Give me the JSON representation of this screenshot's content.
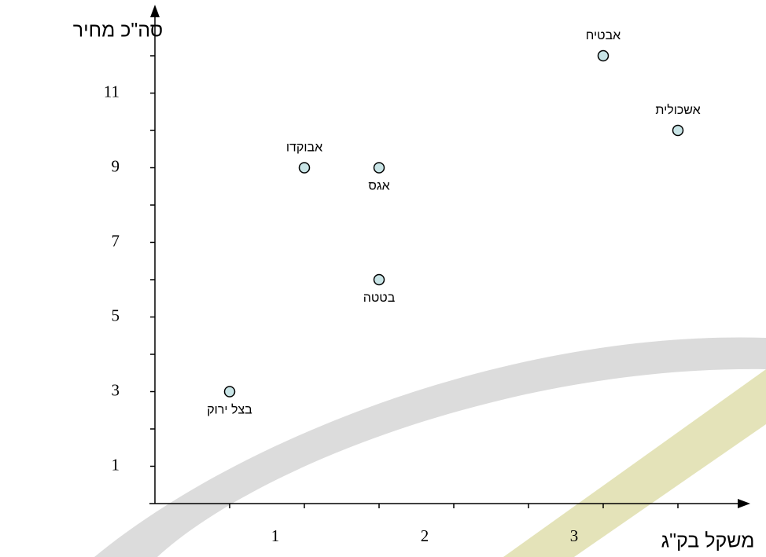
{
  "chart_data": {
    "type": "scatter",
    "x_label": "משקל בק\"ג",
    "y_label": "סה\"כ מחיר",
    "labels": [
      "אבטיח",
      "אשכולית",
      "אבוקדו",
      "אגס",
      "בטטה",
      "בצל ירוק"
    ],
    "x": [
      3,
      3.5,
      1,
      1.5,
      1.5,
      0.5
    ],
    "values": [
      12,
      10,
      9,
      9,
      6,
      3
    ],
    "color": "#c8e4e6",
    "xlim": [
      0,
      3.95
    ],
    "ylim": [
      0,
      13.35
    ],
    "xticks": [
      1,
      2,
      3
    ],
    "yticks": [
      1,
      3,
      5,
      7,
      9,
      11
    ],
    "x_tick_marks": [
      0.5,
      1,
      1.5,
      2,
      2.5,
      3,
      3.5
    ],
    "y_tick_marks": [
      1,
      2,
      3,
      4,
      5,
      6,
      7,
      8,
      9,
      10,
      11,
      12
    ],
    "grid": false
  }
}
